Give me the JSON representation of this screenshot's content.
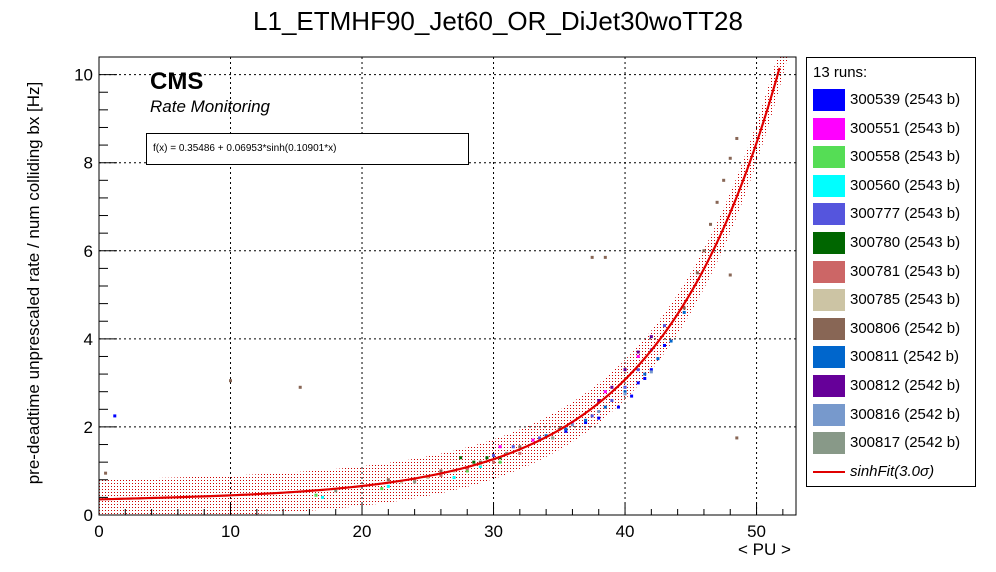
{
  "chart_data": {
    "type": "scatter",
    "title": "L1_ETMHF90_Jet60_OR_DiJet30woTT28",
    "xlabel": "< PU >",
    "ylabel": "pre-deadtime unprescaled rate / num colliding bx [Hz]",
    "xlim": [
      0,
      53
    ],
    "ylim": [
      0,
      10.4
    ],
    "xticks": [
      0,
      10,
      20,
      30,
      40,
      50
    ],
    "yticks": [
      0,
      2,
      4,
      6,
      8,
      10
    ],
    "grid": true,
    "legend_placement": "right",
    "legend_header": "13 runs:",
    "cms_label": "CMS",
    "cms_sublabel": "Rate Monitoring",
    "fit": {
      "formula": "f(x) = 0.35486 + 0.06953*sinh(0.10901*x)",
      "a": 0.35486,
      "b": 0.06953,
      "c": 0.10901,
      "band_sigma": 0.45,
      "color": "#e00000",
      "legend_label": "sinhFit(3.0σ)"
    },
    "series": [
      {
        "name": "300539 (2543 b)",
        "color": "#0000ff",
        "x": [
          1.2,
          35.5,
          37.0,
          38.0,
          39.5,
          40.5,
          41.0,
          41.5,
          42.0,
          43.0
        ],
        "y": [
          2.25,
          1.9,
          2.1,
          2.2,
          2.45,
          2.7,
          3.0,
          3.1,
          3.3,
          3.85
        ]
      },
      {
        "name": "300551 (2543 b)",
        "color": "#ff00ff",
        "x": [
          30.5,
          33.0,
          36.0,
          38.5,
          41.0
        ],
        "y": [
          1.55,
          1.7,
          2.1,
          2.8,
          3.6
        ]
      },
      {
        "name": "300558 (2543 b)",
        "color": "#55dd55",
        "x": [
          16.5,
          21.5,
          26.0,
          28.0,
          30.5
        ],
        "y": [
          0.45,
          0.6,
          0.9,
          1.0,
          1.2
        ]
      },
      {
        "name": "300560 (2543 b)",
        "color": "#00ffff",
        "x": [
          17.0,
          22.0,
          27.0,
          29.0
        ],
        "y": [
          0.4,
          0.65,
          0.85,
          1.1
        ]
      },
      {
        "name": "300777 (2543 b)",
        "color": "#5555dd",
        "x": [
          30.0,
          31.5,
          33.5,
          35.5,
          37.5,
          39.0,
          40.0,
          41.0,
          42.0,
          43.0
        ],
        "y": [
          1.35,
          1.55,
          1.75,
          1.95,
          2.25,
          2.6,
          2.9,
          3.3,
          3.75,
          4.3
        ]
      },
      {
        "name": "300780 (2543 b)",
        "color": "#006600",
        "x": [
          27.5,
          28.5,
          29.5,
          30.5
        ],
        "y": [
          1.3,
          1.2,
          1.3,
          1.3
        ]
      },
      {
        "name": "300781 (2543 b)",
        "color": "#cc6666",
        "x": [
          24.0,
          26.0,
          28.0,
          30.0,
          32.0
        ],
        "y": [
          0.8,
          0.9,
          1.05,
          1.2,
          1.4
        ]
      },
      {
        "name": "300785 (2543 b)",
        "color": "#ccc4a4",
        "x": [
          23.0,
          25.0,
          27.0,
          29.0
        ],
        "y": [
          0.75,
          0.85,
          1.0,
          1.15
        ]
      },
      {
        "name": "300806 (2542 b)",
        "color": "#886655",
        "x": [
          0.5,
          10.0,
          15.3,
          22.0,
          26.0,
          29.0,
          32.0,
          35.0,
          37.5,
          38.5,
          44.5,
          45.5,
          46.0,
          46.5,
          47.0,
          47.5,
          48.0,
          48.5,
          48.0,
          48.5
        ],
        "y": [
          0.95,
          3.05,
          2.9,
          0.8,
          1.0,
          1.2,
          1.55,
          1.95,
          5.85,
          5.85,
          4.7,
          5.5,
          6.0,
          6.6,
          7.1,
          7.6,
          8.1,
          8.55,
          5.45,
          1.75
        ]
      },
      {
        "name": "300811 (2542 b)",
        "color": "#0066cc",
        "x": [
          34.0,
          35.5,
          37.0,
          38.5,
          40.0,
          41.5,
          42.5,
          43.5,
          44.5
        ],
        "y": [
          1.8,
          1.95,
          2.15,
          2.45,
          2.8,
          3.2,
          3.55,
          3.95,
          4.6
        ]
      },
      {
        "name": "300812 (2542 b)",
        "color": "#660099",
        "x": [
          38.0,
          39.0,
          40.0,
          41.0,
          42.0
        ],
        "y": [
          2.6,
          2.9,
          3.3,
          3.7,
          4.05
        ]
      },
      {
        "name": "300816 (2542 b)",
        "color": "#7799cc",
        "x": [
          36.0,
          38.0,
          40.0,
          42.0
        ],
        "y": [
          2.05,
          2.35,
          2.75,
          3.25
        ]
      },
      {
        "name": "300817 (2542 b)",
        "color": "#889988",
        "x": [
          18.0,
          24.0,
          31.0,
          34.5
        ],
        "y": [
          0.55,
          0.75,
          1.4,
          1.75
        ]
      }
    ]
  }
}
